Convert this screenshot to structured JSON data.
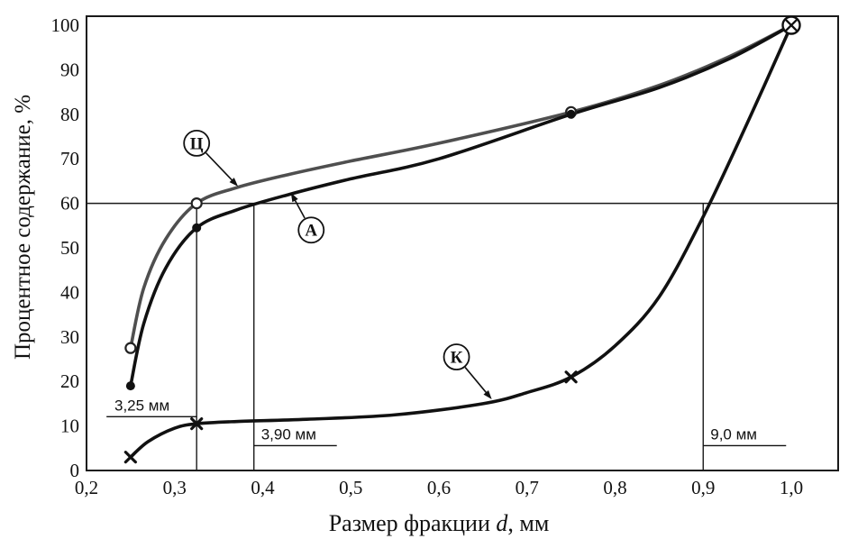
{
  "page": {
    "background": "#ffffff"
  },
  "chart_data": {
    "type": "line",
    "title": "",
    "xlabel_prefix": "Размер фракции ",
    "xlabel_var": "d",
    "xlabel_suffix": ", мм",
    "ylabel": "Процентное содержание, %",
    "xlim": [
      0.2,
      1.053
    ],
    "ylim": [
      0,
      102
    ],
    "grid": false,
    "axis_color": "#1a1a1a",
    "x_ticks": [
      {
        "value": 0.2,
        "label": "0,2"
      },
      {
        "value": 0.3,
        "label": "0,3"
      },
      {
        "value": 0.4,
        "label": "0,4"
      },
      {
        "value": 0.5,
        "label": "0,5"
      },
      {
        "value": 0.6,
        "label": "0,6"
      },
      {
        "value": 0.7,
        "label": "0,7"
      },
      {
        "value": 0.8,
        "label": "0,8"
      },
      {
        "value": 0.9,
        "label": "0,9"
      },
      {
        "value": 1.0,
        "label": "1,0"
      }
    ],
    "y_ticks": [
      {
        "value": 0,
        "label": "0"
      },
      {
        "value": 10,
        "label": "10"
      },
      {
        "value": 20,
        "label": "20"
      },
      {
        "value": 30,
        "label": "30"
      },
      {
        "value": 40,
        "label": "40"
      },
      {
        "value": 50,
        "label": "50"
      },
      {
        "value": 60,
        "label": "60"
      },
      {
        "value": 70,
        "label": "70"
      },
      {
        "value": 80,
        "label": "80"
      },
      {
        "value": 90,
        "label": "90"
      },
      {
        "value": 100,
        "label": "100"
      }
    ],
    "horizontal_reference": {
      "y": 60
    },
    "vertical_references": [
      {
        "x": 0.325,
        "y_top": 60,
        "label": "3,25 мм",
        "label_side": "left",
        "label_y": 13.5
      },
      {
        "x": 0.39,
        "y_top": 60,
        "label": "3,90 мм",
        "label_side": "right",
        "label_y": 7
      },
      {
        "x": 0.9,
        "y_top": 60,
        "label": "9,0 мм",
        "label_side": "right",
        "label_y": 7
      }
    ],
    "series": [
      {
        "name": "Ц",
        "id": "ts",
        "color": "#4f4f4f",
        "marker": "open-circle",
        "marker_points": [
          [
            0.25,
            27.5
          ],
          [
            0.325,
            60
          ],
          [
            0.75,
            80.5
          ]
        ],
        "curve": [
          [
            0.25,
            27.5
          ],
          [
            0.265,
            41
          ],
          [
            0.29,
            52
          ],
          [
            0.325,
            60
          ],
          [
            0.37,
            63.5
          ],
          [
            0.43,
            66.5
          ],
          [
            0.5,
            69.5
          ],
          [
            0.6,
            73.5
          ],
          [
            0.75,
            80.5
          ],
          [
            0.85,
            86.5
          ],
          [
            0.93,
            93
          ],
          [
            1.0,
            100
          ]
        ],
        "label": {
          "text": "Ц",
          "cx": 0.325,
          "cy": 73.5,
          "arrow_to": [
            0.372,
            63.8
          ]
        }
      },
      {
        "name": "А",
        "id": "a",
        "color": "#111111",
        "marker": "filled-circle",
        "marker_points": [
          [
            0.25,
            19
          ],
          [
            0.325,
            54.5
          ],
          [
            0.75,
            80
          ]
        ],
        "curve": [
          [
            0.25,
            19
          ],
          [
            0.265,
            33
          ],
          [
            0.29,
            45.5
          ],
          [
            0.325,
            54.5
          ],
          [
            0.37,
            58.5
          ],
          [
            0.43,
            62
          ],
          [
            0.5,
            65.5
          ],
          [
            0.6,
            70
          ],
          [
            0.75,
            80
          ],
          [
            0.85,
            86
          ],
          [
            0.93,
            92.5
          ],
          [
            1.0,
            100
          ]
        ],
        "label": {
          "text": "А",
          "cx": 0.455,
          "cy": 54,
          "arrow_to": [
            0.432,
            62.4
          ]
        }
      },
      {
        "name": "К",
        "id": "k",
        "color": "#111111",
        "marker": "x",
        "marker_points": [
          [
            0.25,
            3
          ],
          [
            0.325,
            10.5
          ],
          [
            0.75,
            21
          ]
        ],
        "curve": [
          [
            0.25,
            3
          ],
          [
            0.27,
            6.5
          ],
          [
            0.3,
            9.5
          ],
          [
            0.325,
            10.5
          ],
          [
            0.37,
            11
          ],
          [
            0.45,
            11.5
          ],
          [
            0.55,
            12.5
          ],
          [
            0.65,
            15
          ],
          [
            0.7,
            17.5
          ],
          [
            0.75,
            21
          ],
          [
            0.8,
            28
          ],
          [
            0.85,
            39
          ],
          [
            0.9,
            57
          ],
          [
            0.95,
            78
          ],
          [
            1.0,
            100
          ]
        ],
        "label": {
          "text": "К",
          "cx": 0.62,
          "cy": 25.5,
          "arrow_to": [
            0.66,
            16
          ]
        }
      }
    ],
    "convergence_marker": {
      "x": 1.0,
      "y": 100,
      "type": "circled-x"
    }
  }
}
